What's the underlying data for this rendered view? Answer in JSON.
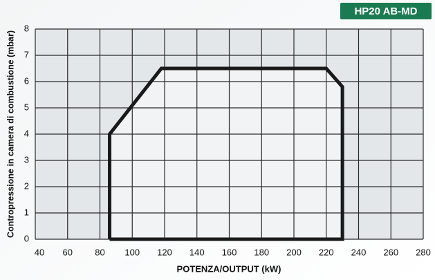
{
  "chart_data": {
    "type": "line",
    "badge": "HP20 AB-MD",
    "xlabel": "POTENZA/OUTPUT (kW)",
    "ylabel": "Contropressione in camera di combustione (mbar)",
    "x": [
      86,
      86,
      118,
      220,
      230,
      230,
      86
    ],
    "series": [
      {
        "color": "#1a1a1a",
        "values": [
          0,
          4,
          6.5,
          6.5,
          5.8,
          0,
          0
        ]
      }
    ],
    "xlim": [
      40,
      280
    ],
    "xticks": [
      40,
      60,
      80,
      100,
      120,
      140,
      160,
      180,
      200,
      220,
      240,
      260,
      280
    ],
    "ylim": [
      0,
      8
    ],
    "yticks": [
      0,
      1,
      2,
      3,
      4,
      5,
      6,
      7,
      8
    ],
    "grid": true
  }
}
